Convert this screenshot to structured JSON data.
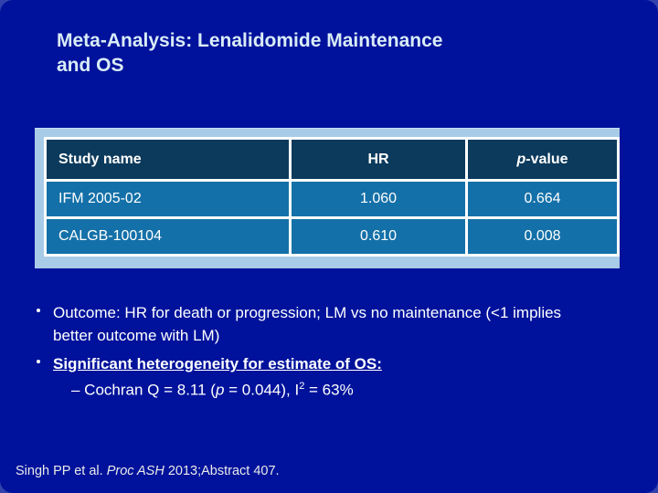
{
  "slide": {
    "title_line1": "Meta-Analysis: Lenalidomide Maintenance",
    "title_line2": "and OS"
  },
  "table": {
    "headers": {
      "study": "Study name",
      "hr": "HR",
      "p_italic": "p",
      "p_rest": "-value"
    },
    "rows": [
      {
        "study": "IFM 2005-02",
        "hr": "1.060",
        "p": "0.664"
      },
      {
        "study": "CALGB-100104",
        "hr": "0.610",
        "p": "0.008"
      }
    ]
  },
  "bullets": {
    "outcome_line1": "Outcome: HR for death or progression; LM vs no maintenance (<1 implies",
    "outcome_line2": "better outcome with LM)",
    "heterogeneity": "Significant heterogeneity for estimate of OS:",
    "cochran": {
      "prefix": "– Cochran Q = 8.11 (",
      "p_italic": "p",
      "mid": " = 0.044), I",
      "sup": "2",
      "suffix": " = 63%"
    }
  },
  "footer": {
    "prefix": "Singh PP et al. ",
    "source_italic": "Proc ASH",
    "suffix": " 2013;Abstract 407."
  },
  "colors": {
    "slide_background": "#00129B",
    "outer_corner_background": "#3242AC",
    "panel_background": "#A8CBE8",
    "table_header_background": "#0B3A5C",
    "table_row_background": "#1470A8",
    "table_border": "#FFFFFF",
    "title_text": "#D9ECF6",
    "body_text": "#FFFFFF",
    "footer_text": "#E9E9E9"
  }
}
